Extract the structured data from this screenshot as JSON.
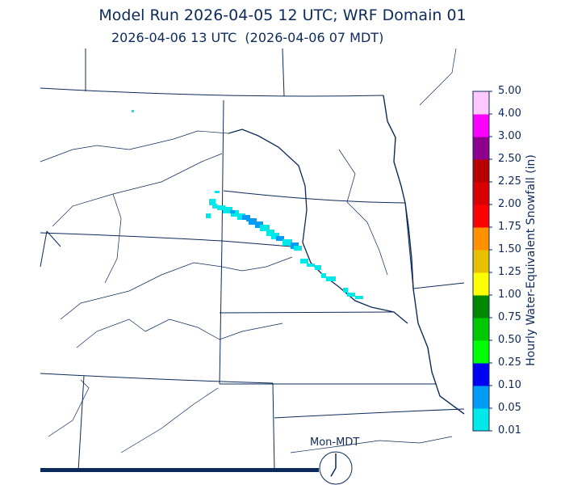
{
  "header": {
    "title": "Model Run 2026-04-05 12 UTC; WRF Domain 01",
    "subtitle": "2026-04-06 13 UTC  (2026-04-06 07 MDT)"
  },
  "colorbar": {
    "title": "Hourly Water-Equivalent Snowfall (in)",
    "ticks": [
      "0.01",
      "0.05",
      "0.10",
      "0.25",
      "0.50",
      "0.75",
      "1.00",
      "1.25",
      "1.50",
      "1.75",
      "2.00",
      "2.25",
      "2.50",
      "3.00",
      "4.00",
      "5.00"
    ],
    "colors": [
      "#00e8e8",
      "#009cf5",
      "#0000f5",
      "#00ff00",
      "#00c800",
      "#008800",
      "#ffff00",
      "#e8c000",
      "#ff9000",
      "#ff0000",
      "#d80000",
      "#b80000",
      "#8c008c",
      "#ff00ff",
      "#ffc8ff"
    ]
  },
  "clock": {
    "label": "Mon-MDT",
    "hour": 7,
    "minute": 0
  },
  "progress": {
    "fraction": 0.66
  },
  "map_colors": {
    "boundaries": "#0c2a5a",
    "rivers": "#0c2a5a"
  }
}
